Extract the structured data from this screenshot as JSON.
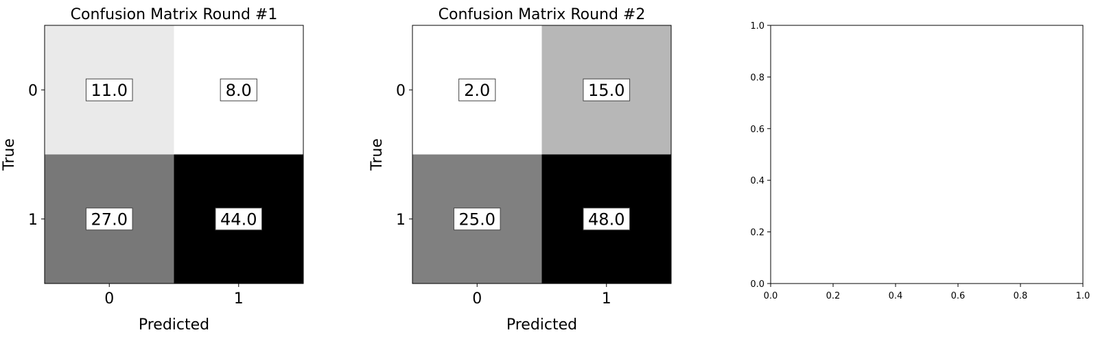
{
  "chart_data": [
    {
      "type": "heatmap",
      "title": "Confusion Matrix Round #1",
      "xlabel": "Predicted",
      "ylabel": "True",
      "x_categories": [
        "0",
        "1"
      ],
      "y_categories": [
        "0",
        "1"
      ],
      "values": [
        [
          11.0,
          8.0
        ],
        [
          27.0,
          44.0
        ]
      ],
      "labels": [
        [
          "11.0",
          "8.0"
        ],
        [
          "27.0",
          "44.0"
        ]
      ],
      "colormap": "grayscale-reversed (higher = darker)"
    },
    {
      "type": "heatmap",
      "title": "Confusion Matrix Round #2",
      "xlabel": "Predicted",
      "ylabel": "True",
      "x_categories": [
        "0",
        "1"
      ],
      "y_categories": [
        "0",
        "1"
      ],
      "values": [
        [
          2.0,
          15.0
        ],
        [
          25.0,
          48.0
        ]
      ],
      "labels": [
        [
          "2.0",
          "15.0"
        ],
        [
          "25.0",
          "48.0"
        ]
      ],
      "colormap": "grayscale-reversed (higher = darker)"
    },
    {
      "type": "scatter",
      "title": "",
      "xlabel": "",
      "ylabel": "",
      "xlim": [
        0.0,
        1.0
      ],
      "ylim": [
        0.0,
        1.0
      ],
      "xticks": [
        "0.0",
        "0.2",
        "0.4",
        "0.6",
        "0.8",
        "1.0"
      ],
      "yticks": [
        "0.0",
        "0.2",
        "0.4",
        "0.6",
        "0.8",
        "1.0"
      ],
      "series": []
    }
  ]
}
